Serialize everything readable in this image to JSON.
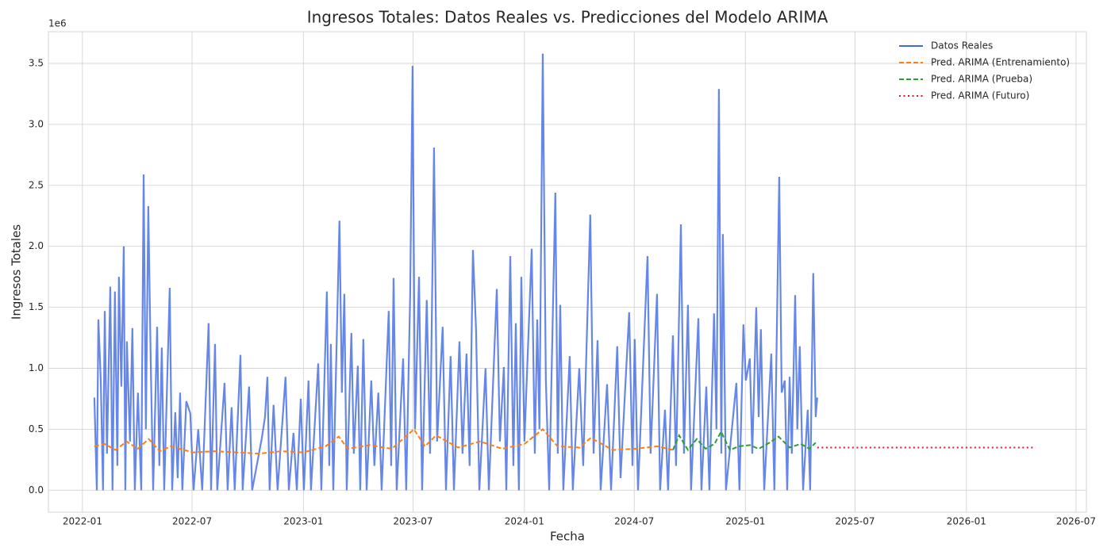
{
  "chart_data": {
    "type": "line",
    "title": "Ingresos Totales: Datos Reales vs. Predicciones del Modelo ARIMA",
    "x_label": "Fecha",
    "y_label": "Ingresos Totales",
    "y_offset_label": "1e6",
    "xlim": [
      2021.846,
      2026.543
    ],
    "ylim": [
      -0.18,
      3.76
    ],
    "xticks": [
      {
        "value": 2022.0,
        "label": "2022-01"
      },
      {
        "value": 2022.496,
        "label": "2022-07"
      },
      {
        "value": 2023.0,
        "label": "2023-01"
      },
      {
        "value": 2023.496,
        "label": "2023-07"
      },
      {
        "value": 2024.0,
        "label": "2024-01"
      },
      {
        "value": 2024.497,
        "label": "2024-07"
      },
      {
        "value": 2025.0,
        "label": "2025-01"
      },
      {
        "value": 2025.496,
        "label": "2025-07"
      },
      {
        "value": 2026.0,
        "label": "2026-01"
      },
      {
        "value": 2026.496,
        "label": "2026-07"
      }
    ],
    "yticks": [
      {
        "value": 0,
        "label": "0.0"
      },
      {
        "value": 0.5,
        "label": "0.5"
      },
      {
        "value": 1,
        "label": "1.0"
      },
      {
        "value": 1.5,
        "label": "1.5"
      },
      {
        "value": 2,
        "label": "2.0"
      },
      {
        "value": 2.5,
        "label": "2.5"
      },
      {
        "value": 3,
        "label": "3.0"
      },
      {
        "value": 3.5,
        "label": "3.5"
      }
    ],
    "grid": true,
    "legend": "upper right",
    "series": [
      {
        "name": "Datos Reales",
        "color": "#4169e1",
        "style": "solid",
        "x": [
          2022.054,
          2022.065,
          2022.072,
          2022.083,
          2022.093,
          2022.101,
          2022.111,
          2022.126,
          2022.136,
          2022.147,
          2022.158,
          2022.165,
          2022.176,
          2022.187,
          2022.194,
          2022.201,
          2022.215,
          2022.226,
          2022.237,
          2022.251,
          2022.266,
          2022.277,
          2022.287,
          2022.298,
          2022.309,
          2022.32,
          2022.338,
          2022.348,
          2022.359,
          2022.37,
          2022.395,
          2022.406,
          2022.42,
          2022.431,
          2022.442,
          2022.452,
          2022.47,
          2022.488,
          2022.503,
          2022.524,
          2022.542,
          2022.571,
          2022.582,
          2022.6,
          2022.61,
          2022.643,
          2022.657,
          2022.675,
          2022.689,
          2022.715,
          2022.725,
          2022.754,
          2022.768,
          2022.812,
          2022.826,
          2022.837,
          2022.847,
          2022.865,
          2022.883,
          2022.919,
          2022.934,
          2022.955,
          2022.97,
          2022.988,
          2023.002,
          2023.023,
          2023.034,
          2023.067,
          2023.081,
          2023.106,
          2023.117,
          2023.124,
          2023.135,
          2023.163,
          2023.174,
          2023.185,
          2023.196,
          2023.217,
          2023.228,
          2023.246,
          2023.257,
          2023.271,
          2023.286,
          2023.307,
          2023.321,
          2023.339,
          2023.354,
          2023.386,
          2023.397,
          2023.408,
          2023.422,
          2023.451,
          2023.465,
          2023.483,
          2023.494,
          2023.505,
          2023.523,
          2023.537,
          2023.558,
          2023.573,
          2023.591,
          2023.605,
          2023.63,
          2023.645,
          2023.666,
          2023.681,
          2023.706,
          2023.72,
          2023.738,
          2023.752,
          2023.767,
          2023.781,
          2023.796,
          2023.824,
          2023.839,
          2023.875,
          2023.889,
          2023.907,
          2023.918,
          2023.936,
          2023.95,
          2023.961,
          2023.975,
          2023.986,
          2024.0,
          2024.033,
          2024.047,
          2024.058,
          2024.068,
          2024.083,
          2024.097,
          2024.112,
          2024.14,
          2024.151,
          2024.162,
          2024.176,
          2024.205,
          2024.219,
          2024.248,
          2024.266,
          2024.298,
          2024.313,
          2024.331,
          2024.345,
          2024.374,
          2024.392,
          2024.42,
          2024.435,
          2024.474,
          2024.489,
          2024.499,
          2024.514,
          2024.557,
          2024.571,
          2024.6,
          2024.614,
          2024.636,
          2024.65,
          2024.672,
          2024.686,
          2024.708,
          2024.722,
          2024.74,
          2024.754,
          2024.787,
          2024.801,
          2024.823,
          2024.837,
          2024.858,
          2024.869,
          2024.88,
          2024.891,
          2024.898,
          2024.912,
          2024.959,
          2024.973,
          2024.991,
          2025.002,
          2025.02,
          2025.031,
          2025.049,
          2025.06,
          2025.07,
          2025.085,
          2025.117,
          2025.131,
          2025.153,
          2025.164,
          2025.178,
          2025.189,
          2025.2,
          2025.21,
          2025.225,
          2025.235,
          2025.246,
          2025.261,
          2025.282,
          2025.293,
          2025.307,
          2025.318,
          2025.325
        ],
        "values": [
          0.76,
          0,
          1.4,
          0.9,
          0,
          1.47,
          0.3,
          1.67,
          0,
          1.63,
          0.2,
          1.75,
          0.85,
          2.0,
          0,
          1.22,
          0.4,
          1.33,
          0,
          0.8,
          0,
          2.59,
          0.5,
          2.33,
          1.06,
          0,
          1.34,
          0.2,
          1.17,
          0,
          1.66,
          0,
          0.64,
          0.1,
          0.8,
          0,
          0.73,
          0.63,
          0,
          0.5,
          0,
          1.37,
          0,
          1.2,
          0,
          0.88,
          0,
          0.68,
          0,
          1.11,
          0,
          0.85,
          0,
          0.43,
          0.6,
          0.93,
          0,
          0.7,
          0,
          0.93,
          0,
          0.47,
          0,
          0.75,
          0,
          0.9,
          0,
          1.04,
          0,
          1.63,
          0.2,
          1.2,
          0,
          2.21,
          0.8,
          1.61,
          0,
          1.29,
          0.3,
          1.02,
          0,
          1.24,
          0,
          0.9,
          0.2,
          0.8,
          0,
          1.47,
          0.2,
          1.74,
          0,
          1.08,
          0,
          1.6,
          3.48,
          0.5,
          1.75,
          0,
          1.56,
          0.3,
          2.81,
          0.4,
          1.34,
          0,
          1.1,
          0,
          1.22,
          0.3,
          1.12,
          0.2,
          1.97,
          1.32,
          0,
          1.0,
          0,
          1.65,
          0.4,
          1.01,
          0,
          1.92,
          0.2,
          1.37,
          0,
          1.75,
          0.4,
          1.98,
          0.3,
          1.4,
          0.5,
          3.58,
          0.9,
          0,
          2.44,
          0.3,
          1.52,
          0,
          1.1,
          0,
          1.0,
          0.2,
          2.26,
          0.3,
          1.23,
          0,
          0.87,
          0,
          1.18,
          0.1,
          1.46,
          0.2,
          1.24,
          0,
          1.92,
          0.3,
          1.61,
          0,
          0.66,
          0,
          1.27,
          0.2,
          2.18,
          0.3,
          1.52,
          0,
          1.41,
          0,
          0.85,
          0,
          1.45,
          0.5,
          3.29,
          0.3,
          2.1,
          0,
          0.88,
          0,
          1.36,
          0.9,
          1.08,
          0.3,
          1.5,
          0.6,
          1.32,
          0,
          1.12,
          0,
          2.57,
          0.8,
          0.9,
          0,
          0.93,
          0.3,
          1.6,
          0.5,
          1.18,
          0,
          0.66,
          0,
          1.78,
          0.6,
          0.76
        ]
      },
      {
        "name": "Pred. ARIMA (Entrenamiento)",
        "color": "#ff7f0e",
        "style": "dashed",
        "x": [
          2022.054,
          2022.1,
          2022.15,
          2022.2,
          2022.25,
          2022.3,
          2022.35,
          2022.4,
          2022.5,
          2022.6,
          2022.7,
          2022.8,
          2022.9,
          2023.0,
          2023.1,
          2023.16,
          2023.2,
          2023.3,
          2023.4,
          2023.5,
          2023.55,
          2023.6,
          2023.7,
          2023.8,
          2023.9,
          2024.0,
          2024.083,
          2024.15,
          2024.25,
          2024.3,
          2024.4,
          2024.5,
          2024.6,
          2024.672
        ],
        "values": [
          0.36,
          0.38,
          0.33,
          0.4,
          0.34,
          0.42,
          0.32,
          0.36,
          0.31,
          0.32,
          0.31,
          0.3,
          0.32,
          0.31,
          0.36,
          0.44,
          0.34,
          0.37,
          0.34,
          0.5,
          0.36,
          0.45,
          0.35,
          0.4,
          0.34,
          0.38,
          0.5,
          0.36,
          0.35,
          0.43,
          0.33,
          0.34,
          0.36,
          0.33
        ]
      },
      {
        "name": "Pred. ARIMA (Prueba)",
        "color": "#2ca02c",
        "style": "dashed",
        "x": [
          2024.672,
          2024.7,
          2024.74,
          2024.78,
          2024.82,
          2024.86,
          2024.89,
          2024.93,
          2024.97,
          2025.02,
          2025.06,
          2025.1,
          2025.15,
          2025.2,
          2025.25,
          2025.29,
          2025.318
        ],
        "values": [
          0.33,
          0.45,
          0.33,
          0.42,
          0.34,
          0.38,
          0.48,
          0.33,
          0.36,
          0.37,
          0.34,
          0.38,
          0.44,
          0.35,
          0.38,
          0.34,
          0.39
        ]
      },
      {
        "name": "Pred. ARIMA (Futuro)",
        "color": "#e8112d",
        "style": "dotted",
        "x": [
          2025.325,
          2026.313
        ],
        "values": [
          0.35,
          0.35
        ]
      }
    ]
  }
}
